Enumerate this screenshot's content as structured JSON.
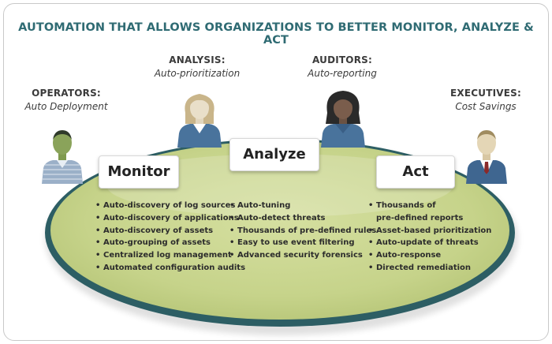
{
  "title": "AUTOMATION THAT ALLOWS ORGANIZATIONS TO BETTER MONITOR, ANALYZE & ACT",
  "roles": [
    {
      "name": "OPERATORS:",
      "subtitle": "Auto Deployment"
    },
    {
      "name": "ANALYSIS:",
      "subtitle": "Auto-prioritization"
    },
    {
      "name": "AUDITORS:",
      "subtitle": "Auto-reporting"
    },
    {
      "name": "EXECUTIVES:",
      "subtitle": "Cost Savings"
    }
  ],
  "stages": {
    "monitor": {
      "label": "Monitor",
      "items": [
        "Auto-discovery of log sources",
        "Auto-discovery of applications",
        "Auto-discovery of assets",
        "Auto-grouping of assets",
        "Centralized log management",
        "Automated configuration audits"
      ]
    },
    "analyze": {
      "label": "Analyze",
      "items": [
        "Auto-tuning",
        "Auto-detect threats",
        "Thousands of pre-defined rules",
        "Easy to use event filtering",
        "Advanced security forensics"
      ]
    },
    "act": {
      "label": "Act",
      "items": [
        "Thousands of",
        "pre-defined reports",
        "Asset-based prioritization",
        "Auto-update of threats",
        "Auto-response",
        "Directed remediation"
      ]
    }
  },
  "colors": {
    "title": "#2f6b73",
    "table_fill": "#c9d58f",
    "table_rim": "#2d5e64",
    "person_blue": "#49739c",
    "person_green": "#8aa35a"
  }
}
